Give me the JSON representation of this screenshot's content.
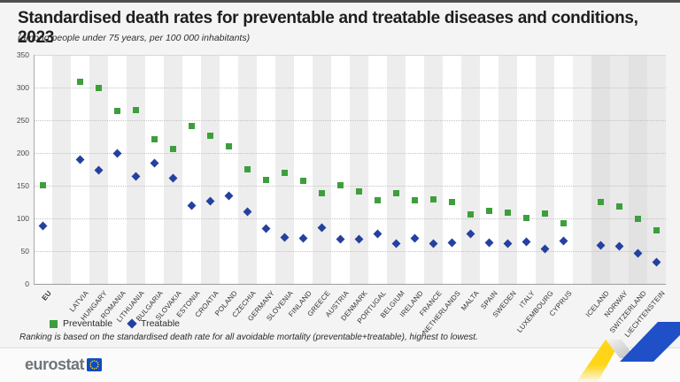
{
  "page": {
    "top_bar_color": "#4F4F4F",
    "background_color": "#F4F4F4"
  },
  "chart_data": {
    "type": "scatter",
    "title": "Standardised death rates for preventable and treatable diseases and conditions, 2023",
    "subtitle": "(among people under 75 years, per 100 000 inhabitants)",
    "footnote": "Ranking is based on the standardised death rate for all avoidable mortality (preventable+treatable), highest to lowest.",
    "ylim": [
      0,
      350
    ],
    "ytick_step": 50,
    "yticks": [
      0,
      50,
      100,
      150,
      200,
      250,
      300,
      350
    ],
    "grid": "horizontal-dotted",
    "legend_position": "bottom-left",
    "categories": [
      "EU",
      "LATVIA",
      "HUNGARY",
      "ROMANIA",
      "LITHUANIA",
      "BULGARIA",
      "SLOVAKIA",
      "ESTONIA",
      "CROATIA",
      "POLAND",
      "CZECHIA",
      "GERMANY",
      "SLOVENIA",
      "FINLAND",
      "GREECE",
      "AUSTRIA",
      "DENMARK",
      "PORTUGAL",
      "BELGIUM",
      "IRELAND",
      "FRANCE",
      "NETHERLANDS",
      "MALTA",
      "SPAIN",
      "SWEDEN",
      "ITALY",
      "LUXEMBOURG",
      "CYPRUS",
      "ICELAND",
      "NORWAY",
      "SWITZERLAND",
      "LIECHTENSTEIN"
    ],
    "gap_after_indices": [
      0,
      27
    ],
    "non_eu_start_index": 28,
    "series": [
      {
        "name": "Preventable",
        "marker": "square",
        "color": "#3D9F3C",
        "values": [
          151,
          309,
          300,
          264,
          265,
          221,
          206,
          241,
          226,
          210,
          175,
          159,
          169,
          158,
          139,
          151,
          141,
          128,
          138,
          128,
          129,
          125,
          106,
          112,
          109,
          101,
          108,
          92,
          125,
          118,
          100,
          82
        ]
      },
      {
        "name": "Treatable",
        "marker": "diamond",
        "color": "#2441A0",
        "values": [
          88,
          190,
          173,
          200,
          164,
          185,
          162,
          119,
          127,
          134,
          110,
          85,
          71,
          70,
          86,
          68,
          68,
          76,
          61,
          70,
          61,
          63,
          77,
          63,
          61,
          64,
          53,
          65,
          59,
          57,
          46,
          33
        ]
      }
    ]
  },
  "footer": {
    "brand": "eurostat"
  },
  "colors": {
    "preventable_green": "#3D9F3C",
    "treatable_blue": "#2441A0",
    "eu_flag_blue": "#0D4BC3",
    "star_yellow": "#FFD617",
    "ribbon_yellow": "#FFD617",
    "ribbon_blue": "#2050C8",
    "non_eu_band_gray": "#E2E2E2"
  },
  "icons": {
    "eu_flag": "blue rounded square with circle of yellow stars",
    "ribbon": "yellow-white-blue zigzag ribbon decoration",
    "preventable_marker": "green filled square",
    "treatable_marker": "blue filled diamond"
  }
}
